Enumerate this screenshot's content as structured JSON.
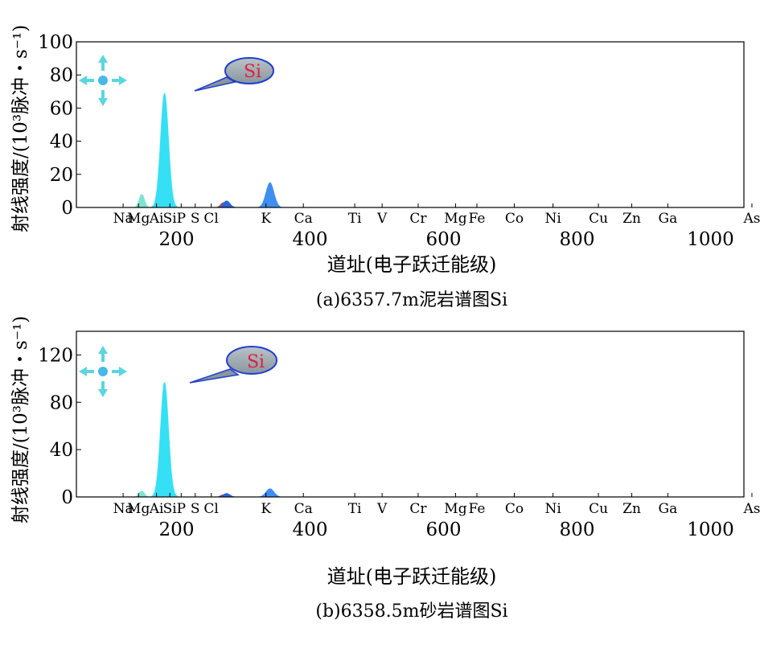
{
  "chart_data": [
    {
      "type": "area",
      "id": "a",
      "caption": "(a)6357.7m泥岩谱图Si",
      "xlabel": "道址(电子跃迁能级)",
      "ylabel": "射线强度/(10³脉冲・s⁻¹)",
      "xlim": [
        50,
        1050
      ],
      "ylim": [
        0,
        100
      ],
      "xticks": [
        200,
        400,
        600,
        800,
        1000
      ],
      "yticks": [
        0,
        20,
        40,
        60,
        80,
        100
      ],
      "callout": "Si",
      "peaks": [
        {
          "center": 148,
          "height": 8,
          "width": 4,
          "color": "#7fe3cf"
        },
        {
          "center": 182,
          "height": 69,
          "width": 6,
          "color": "#35e0f5"
        },
        {
          "center": 270,
          "height": 3,
          "width": 4,
          "color": "#d9443a"
        },
        {
          "center": 275,
          "height": 4,
          "width": 5,
          "color": "#2a64d8"
        },
        {
          "center": 340,
          "height": 15,
          "width": 6,
          "color": "#3f8ef0"
        }
      ]
    },
    {
      "type": "area",
      "id": "b",
      "caption": "(b)6358.5m砂岩谱图Si",
      "xlabel": "道址(电子跃迁能级)",
      "ylabel": "射线强度/(10³脉冲・s⁻¹)",
      "xlim": [
        50,
        1050
      ],
      "ylim": [
        0,
        140
      ],
      "xticks": [
        200,
        400,
        600,
        800,
        1000
      ],
      "yticks": [
        0,
        40,
        80,
        120
      ],
      "callout": "Si",
      "peaks": [
        {
          "center": 148,
          "height": 5,
          "width": 4,
          "color": "#7fe3cf"
        },
        {
          "center": 182,
          "height": 97,
          "width": 6,
          "color": "#35e0f5"
        },
        {
          "center": 270,
          "height": 2,
          "width": 4,
          "color": "#d9443a"
        },
        {
          "center": 275,
          "height": 3,
          "width": 5,
          "color": "#2a64d8"
        },
        {
          "center": 340,
          "height": 7,
          "width": 6,
          "color": "#3f8ef0"
        }
      ]
    }
  ],
  "elements": [
    {
      "label": "Na",
      "x": 120
    },
    {
      "label": "Mg",
      "x": 143
    },
    {
      "label": "Ai",
      "x": 170
    },
    {
      "label": "Si",
      "x": 190
    },
    {
      "label": "P",
      "x": 207
    },
    {
      "label": "S",
      "x": 228
    },
    {
      "label": "Cl",
      "x": 252
    },
    {
      "label": "K",
      "x": 334
    },
    {
      "label": "Ca",
      "x": 390
    },
    {
      "label": "Ti",
      "x": 467
    },
    {
      "label": "V",
      "x": 508
    },
    {
      "label": "Cr",
      "x": 562
    },
    {
      "label": "Mg",
      "x": 618
    },
    {
      "label": "Fe",
      "x": 650
    },
    {
      "label": "Co",
      "x": 706
    },
    {
      "label": "Ni",
      "x": 764
    },
    {
      "label": "Cu",
      "x": 832
    },
    {
      "label": "Zn",
      "x": 882
    },
    {
      "label": "Ga",
      "x": 936
    },
    {
      "label": "As",
      "x": 1062
    }
  ],
  "colors": {
    "axis": "#000000",
    "callout_fill": "#9aa6ad",
    "callout_stroke": "#1f3fd0",
    "nav_arrow": "#5ad6dd"
  },
  "icons": [
    "pan-move-icon",
    "speech-callout-icon"
  ]
}
